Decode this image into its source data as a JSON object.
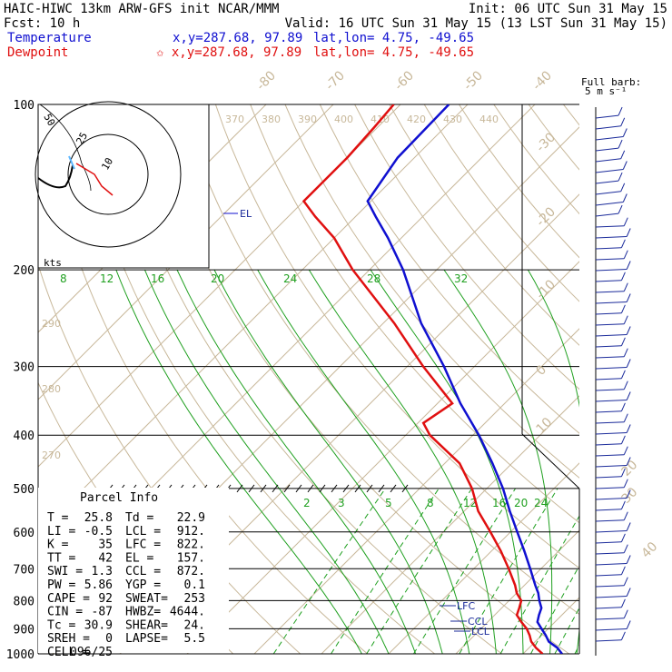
{
  "header": {
    "line1_left": "HAIC-HIWC 13km ARW-GFS init   NCAR/MMM",
    "line1_right": "Init: 06 UTC Sun 31 May 15",
    "line2_left": "Fcst:   10 h",
    "line2_right": "Valid: 16 UTC Sun 31 May 15 (13 LST Sun 31 May 15)",
    "temp_label": "Temperature",
    "temp_xy": "x,y=287.68, 97.89",
    "temp_latlon": "lat,lon=  4.75, -49.65",
    "dew_label": "Dewpoint",
    "dew_xy": "✩ x,y=287.68, 97.89",
    "dew_latlon": "lat,lon=  4.75, -49.65"
  },
  "barb_legend": {
    "line1": "Full barb:",
    "line2": "5 m s⁻¹"
  },
  "hodograph": {
    "ring_label": "50",
    "inner_label": "10",
    "outer_label": "25",
    "units": "kts"
  },
  "parcel_info": {
    "title": "Parcel Info",
    "rows": [
      [
        "T  =",
        "25.8",
        "Td =",
        "22.9"
      ],
      [
        "LI =",
        "-0.5",
        "LCL =",
        "912."
      ],
      [
        "K  =",
        "35",
        "LFC =",
        "822."
      ],
      [
        "TT =",
        "42",
        "EL  =",
        "157."
      ],
      [
        "SWI =",
        "1.3",
        "CCL =",
        "872."
      ],
      [
        "PW =",
        "5.86",
        "YGP =",
        "0.1"
      ],
      [
        "CAPE =",
        "92",
        "SWEAT=",
        "253"
      ],
      [
        "CIN =",
        "-87",
        "HWBZ=",
        "4644."
      ],
      [
        "Tc =",
        "30.9",
        "SHEAR=",
        "24."
      ],
      [
        "SREH =",
        "0",
        "LAPSE=",
        "5.5"
      ],
      [
        "CELL =",
        "096/25",
        "",
        ""
      ]
    ]
  },
  "level_labels": {
    "el": "EL",
    "lfc": "LFC",
    "ccl": "CCL",
    "lcl": "LCL"
  },
  "colors": {
    "temperature": "#1010d0",
    "dewpoint": "#e01010",
    "isotherm": "#c8b89a",
    "mixing": "#20a020",
    "barb": "#1a2a9a"
  },
  "chart_data": {
    "type": "line",
    "title": "",
    "xlabel": "",
    "ylabel": "",
    "pressure_ticks": [
      100,
      200,
      300,
      400,
      500,
      600,
      700,
      800,
      900,
      1000
    ],
    "isotherm_labels": [
      -80,
      -70,
      -60,
      -50,
      -40,
      -30,
      -20,
      -10,
      0,
      10,
      20,
      30,
      40
    ],
    "theta_labels": [
      370,
      380,
      390,
      400,
      410,
      420,
      430,
      440
    ],
    "theta_side_labels": [
      290,
      280,
      270
    ],
    "mixing_ratio_labels_upper": [
      8,
      12,
      16,
      20,
      24,
      28,
      32
    ],
    "mixing_ratio_labels_lower": [
      2,
      3,
      5,
      8,
      12,
      16,
      20,
      24
    ],
    "series": [
      {
        "name": "Temperature",
        "pressure": [
          1000,
          975,
          950,
          925,
          900,
          875,
          850,
          825,
          800,
          775,
          750,
          700,
          650,
          600,
          550,
          500,
          450,
          400,
          350,
          300,
          250,
          200,
          175,
          160,
          150,
          125,
          100
        ],
        "temp_c": [
          25.8,
          24.2,
          22.0,
          20.6,
          19.0,
          17.4,
          16.6,
          15.9,
          14.5,
          13.2,
          11.6,
          8.4,
          4.9,
          1.0,
          -3.2,
          -7.6,
          -12.9,
          -19.1,
          -26.6,
          -34.5,
          -44.4,
          -55.0,
          -62.0,
          -67.0,
          -70.5,
          -72.5,
          -72.8
        ]
      },
      {
        "name": "Dewpoint",
        "pressure": [
          1000,
          975,
          950,
          925,
          900,
          875,
          850,
          825,
          800,
          775,
          750,
          700,
          650,
          600,
          550,
          500,
          450,
          400,
          380,
          350,
          300,
          250,
          200,
          175,
          160,
          150,
          125,
          110,
          100
        ],
        "temp_c": [
          22.9,
          21.0,
          19.4,
          18.2,
          16.8,
          15.0,
          13.3,
          12.6,
          11.8,
          10.0,
          8.6,
          5.2,
          1.4,
          -3.0,
          -7.9,
          -12.2,
          -17.8,
          -26.4,
          -29.2,
          -27.8,
          -37.6,
          -48.4,
          -62.5,
          -70.0,
          -76.0,
          -80.0,
          -80.0,
          -80.5,
          -81.0
        ]
      }
    ]
  }
}
